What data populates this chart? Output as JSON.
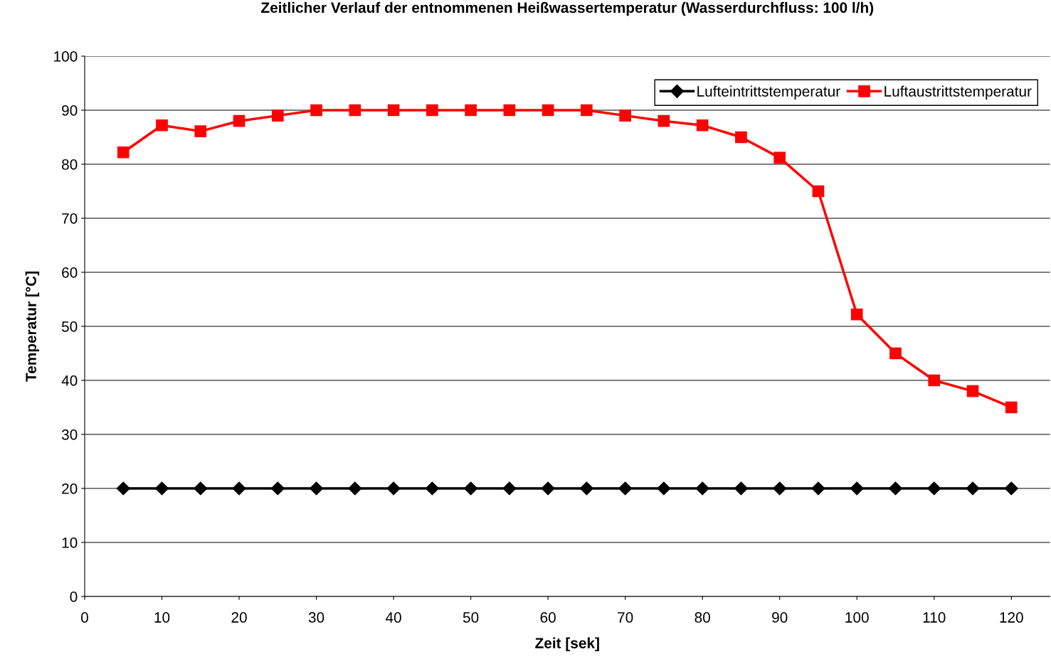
{
  "chart_data": {
    "type": "line",
    "title": "Zeitlicher Verlauf der entnommenen Heißwassertemperatur (Wasserdurchfluss: 100 l/h)",
    "xlabel": "Zeit [sek]",
    "ylabel": "Temperatur [°C]",
    "x": [
      5,
      10,
      15,
      20,
      25,
      30,
      35,
      40,
      45,
      50,
      55,
      60,
      65,
      70,
      75,
      80,
      85,
      90,
      95,
      100,
      105,
      110,
      115,
      120
    ],
    "series": [
      {
        "name": "Lufteintrittstemperatur",
        "color": "#000000",
        "marker": "diamond",
        "values": [
          20,
          20,
          20,
          20,
          20,
          20,
          20,
          20,
          20,
          20,
          20,
          20,
          20,
          20,
          20,
          20,
          20,
          20,
          20,
          20,
          20,
          20,
          20,
          20
        ]
      },
      {
        "name": "Luftaustrittstemperatur",
        "color": "#ff0000",
        "marker": "square",
        "values": [
          82.2,
          87.2,
          86.1,
          88,
          89,
          90,
          90,
          90,
          90,
          90,
          90,
          90,
          90,
          89,
          88,
          87.2,
          85,
          81.2,
          75,
          52.2,
          45,
          40,
          38,
          35
        ]
      }
    ],
    "xlim": [
      0,
      125
    ],
    "xticks": [
      0,
      10,
      20,
      30,
      40,
      50,
      60,
      70,
      80,
      90,
      100,
      110,
      120
    ],
    "ylim": [
      0,
      100
    ],
    "yticks": [
      0,
      10,
      20,
      30,
      40,
      50,
      60,
      70,
      80,
      90,
      100
    ],
    "grid": "y",
    "legend": "top right",
    "line_style": "solid"
  }
}
